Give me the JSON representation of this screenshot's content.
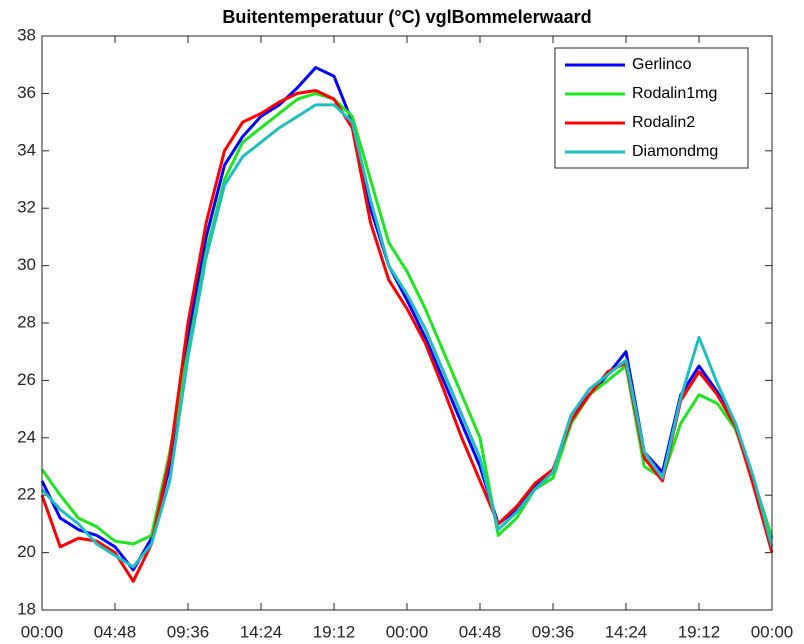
{
  "chart_data": {
    "type": "line",
    "title": "Buitentemperatuur (°C) vglBommelerwaard",
    "x": [
      0,
      1.2,
      2.4,
      3.6,
      4.8,
      6,
      7.2,
      8.4,
      9.6,
      10.8,
      12,
      13.2,
      14.4,
      15.6,
      16.8,
      18,
      19.2,
      20.4,
      21.6,
      22.8,
      24,
      25.2,
      26.4,
      27.6,
      28.8,
      30,
      31.2,
      32.4,
      33.6,
      34.8,
      36,
      37.2,
      38.4,
      39.6,
      40.8,
      42,
      43.2,
      44.4,
      45.6,
      46.8,
      48
    ],
    "series": [
      {
        "name": "Gerlinco",
        "color": "#0000ff",
        "values": [
          22.5,
          21.2,
          20.8,
          20.6,
          20.2,
          19.4,
          20.5,
          23,
          27.5,
          31,
          33.5,
          34.5,
          35.2,
          35.6,
          36.2,
          36.9,
          36.6,
          35,
          32,
          30,
          28.8,
          27.5,
          26,
          24.5,
          23,
          21,
          21.5,
          22.3,
          22.8,
          24.8,
          25.5,
          26.2,
          27,
          23.5,
          22.8,
          25.5,
          26.5,
          25.6,
          24.5,
          22.5,
          20.5
        ]
      },
      {
        "name": "Rodalin1mg",
        "color": "#1ee61e",
        "values": [
          22.9,
          22,
          21.2,
          20.9,
          20.4,
          20.3,
          20.6,
          23.5,
          27,
          30.5,
          33,
          34.3,
          34.8,
          35.3,
          35.8,
          36,
          35.8,
          35.2,
          33,
          30.8,
          29.8,
          28.5,
          27,
          25.5,
          24,
          20.6,
          21.2,
          22.2,
          22.6,
          24.5,
          25.5,
          26,
          26.5,
          23,
          22.6,
          24.5,
          25.5,
          25.2,
          24.3,
          22.5,
          20.5
        ]
      },
      {
        "name": "Rodalin2",
        "color": "#ff0000",
        "values": [
          22,
          20.2,
          20.5,
          20.4,
          20,
          19,
          20.3,
          23.3,
          28,
          31.5,
          34,
          35,
          35.3,
          35.7,
          36,
          36.1,
          35.8,
          34.8,
          31.5,
          29.5,
          28.5,
          27.3,
          25.7,
          24,
          22.5,
          21,
          21.6,
          22.4,
          22.9,
          24.6,
          25.5,
          26.3,
          26.6,
          23.3,
          22.5,
          25.3,
          26.3,
          25.5,
          24.4,
          22.3,
          20
        ]
      },
      {
        "name": "Diamondmg",
        "color": "#1fbfbf",
        "values": [
          22.2,
          21.5,
          21,
          20.3,
          19.9,
          19.5,
          20.3,
          22.5,
          26.8,
          30.3,
          32.8,
          33.8,
          34.3,
          34.8,
          35.2,
          35.6,
          35.6,
          35,
          32.3,
          30,
          29,
          27.8,
          26.3,
          24.8,
          23.3,
          20.8,
          21.4,
          22.2,
          22.8,
          24.8,
          25.7,
          26.2,
          26.7,
          23.5,
          22.6,
          25.4,
          27.5,
          25.9,
          24.5,
          22.6,
          20.2
        ]
      }
    ],
    "xlim": [
      0,
      48
    ],
    "xticks": [
      {
        "value": 0,
        "label": "00:00"
      },
      {
        "value": 4.8,
        "label": "04:48"
      },
      {
        "value": 9.6,
        "label": "09:36"
      },
      {
        "value": 14.4,
        "label": "14:24"
      },
      {
        "value": 19.2,
        "label": "19:12"
      },
      {
        "value": 24,
        "label": "00:00"
      },
      {
        "value": 28.8,
        "label": "04:48"
      },
      {
        "value": 33.6,
        "label": "09:36"
      },
      {
        "value": 38.4,
        "label": "14:24"
      },
      {
        "value": 43.2,
        "label": "19:12"
      },
      {
        "value": 48,
        "label": "00:00"
      }
    ],
    "ylim": [
      18,
      38
    ],
    "yticks": [
      18,
      20,
      22,
      24,
      26,
      28,
      30,
      32,
      34,
      36,
      38
    ],
    "grid": false,
    "legend": "upper right"
  }
}
